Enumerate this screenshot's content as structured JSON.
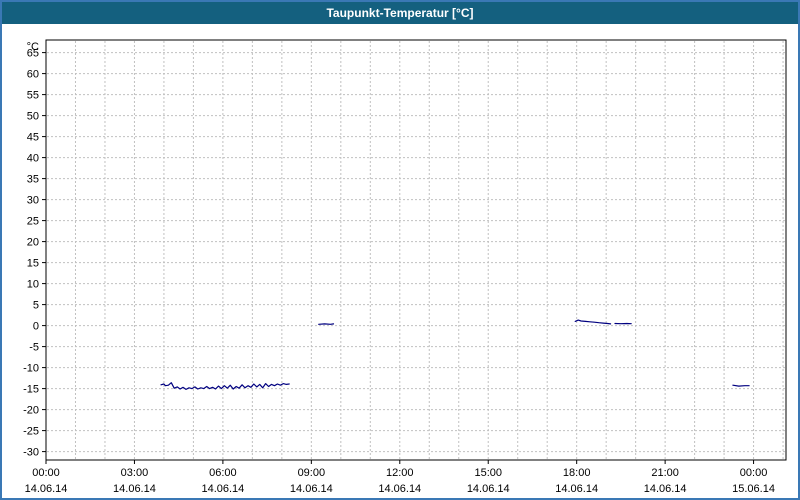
{
  "colors": {
    "titlebar_bg": "#14607F",
    "titlebar_text": "#FFFFFF",
    "window_border": "#3A78B5",
    "line": "#000080",
    "grid": "#C0C0C0",
    "plot_border": "#000000",
    "text": "#000000"
  },
  "chart_data": {
    "type": "line",
    "title": "Taupunkt-Temperatur [°C]",
    "y_unit": "°C",
    "ylim": [
      -32,
      68
    ],
    "y_ticks": {
      "min": -30,
      "max": 65,
      "step": 5
    },
    "xlim": [
      0,
      25.1
    ],
    "x_minor_step_hours": 1,
    "grid": true,
    "legend": false,
    "x_ticks": [
      {
        "hour": 0,
        "time": "00:00",
        "date": "14.06.14"
      },
      {
        "hour": 3,
        "time": "03:00",
        "date": "14.06.14"
      },
      {
        "hour": 6,
        "time": "06:00",
        "date": "14.06.14"
      },
      {
        "hour": 9,
        "time": "09:00",
        "date": "14.06.14"
      },
      {
        "hour": 12,
        "time": "12:00",
        "date": "14.06.14"
      },
      {
        "hour": 15,
        "time": "15:00",
        "date": "14.06.14"
      },
      {
        "hour": 18,
        "time": "18:00",
        "date": "14.06.14"
      },
      {
        "hour": 21,
        "time": "21:00",
        "date": "14.06.14"
      },
      {
        "hour": 24,
        "time": "00:00",
        "date": "15.06.14"
      }
    ],
    "series": [
      {
        "name": "Taupunkt",
        "segments": [
          [
            [
              3.9,
              -14.1
            ],
            [
              4.0,
              -13.9
            ],
            [
              4.05,
              -14.3
            ],
            [
              4.15,
              -14.2
            ],
            [
              4.25,
              -13.6
            ],
            [
              4.35,
              -14.9
            ],
            [
              4.45,
              -14.6
            ],
            [
              4.55,
              -15.1
            ],
            [
              4.65,
              -14.7
            ],
            [
              4.75,
              -15.2
            ],
            [
              4.85,
              -14.8
            ],
            [
              4.95,
              -15.0
            ],
            [
              5.05,
              -14.6
            ],
            [
              5.15,
              -15.1
            ],
            [
              5.25,
              -14.8
            ],
            [
              5.35,
              -15.0
            ],
            [
              5.45,
              -14.5
            ],
            [
              5.55,
              -15.0
            ],
            [
              5.65,
              -14.7
            ],
            [
              5.75,
              -15.1
            ],
            [
              5.85,
              -14.4
            ],
            [
              5.95,
              -15.0
            ],
            [
              6.05,
              -14.3
            ],
            [
              6.15,
              -14.9
            ],
            [
              6.25,
              -14.2
            ],
            [
              6.35,
              -15.1
            ],
            [
              6.45,
              -14.5
            ],
            [
              6.55,
              -14.9
            ],
            [
              6.65,
              -14.1
            ],
            [
              6.75,
              -14.8
            ],
            [
              6.85,
              -14.3
            ],
            [
              6.95,
              -14.7
            ],
            [
              7.05,
              -13.9
            ],
            [
              7.15,
              -14.6
            ],
            [
              7.25,
              -14.0
            ],
            [
              7.35,
              -14.8
            ],
            [
              7.45,
              -13.8
            ],
            [
              7.55,
              -14.5
            ],
            [
              7.65,
              -14.0
            ],
            [
              7.75,
              -14.3
            ],
            [
              7.85,
              -13.9
            ],
            [
              7.95,
              -14.2
            ],
            [
              8.05,
              -13.8
            ],
            [
              8.15,
              -14.0
            ],
            [
              8.25,
              -13.9
            ]
          ],
          [
            [
              9.25,
              0.3
            ],
            [
              9.45,
              0.4
            ],
            [
              9.65,
              0.3
            ],
            [
              9.75,
              0.4
            ]
          ],
          [
            [
              17.95,
              1.0
            ],
            [
              18.05,
              1.3
            ],
            [
              18.15,
              1.1
            ],
            [
              18.3,
              1.0
            ],
            [
              18.45,
              0.9
            ],
            [
              18.6,
              0.8
            ],
            [
              18.75,
              0.7
            ],
            [
              18.9,
              0.6
            ],
            [
              19.05,
              0.5
            ],
            [
              19.15,
              0.4
            ]
          ],
          [
            [
              19.3,
              0.5
            ],
            [
              19.5,
              0.45
            ],
            [
              19.7,
              0.5
            ],
            [
              19.85,
              0.45
            ]
          ],
          [
            [
              23.3,
              -14.2
            ],
            [
              23.5,
              -14.4
            ],
            [
              23.7,
              -14.3
            ],
            [
              23.85,
              -14.3
            ]
          ]
        ]
      }
    ]
  }
}
